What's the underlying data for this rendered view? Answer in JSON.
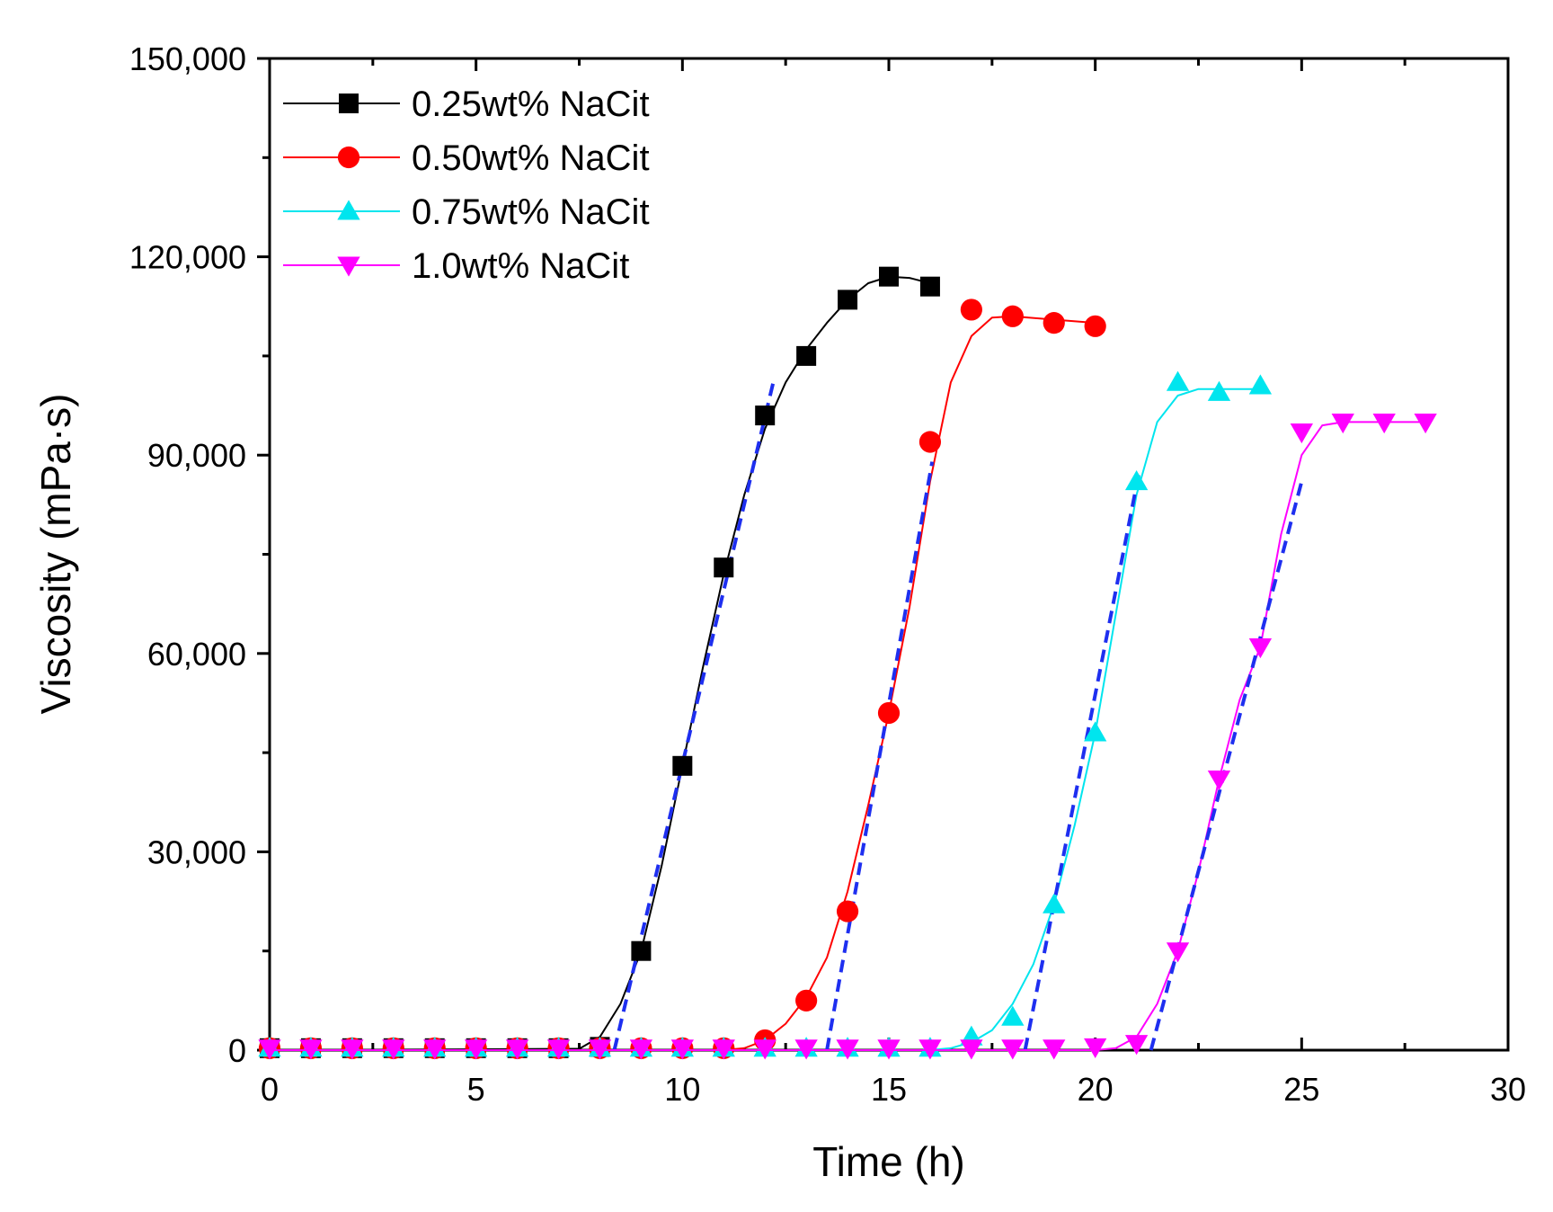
{
  "chart_data": {
    "type": "scatter",
    "title": "",
    "xlabel": "Time (h)",
    "ylabel": "Viscosity (mPa·s)",
    "xlim": [
      0,
      30
    ],
    "ylim": [
      0,
      150000
    ],
    "xticks": [
      0,
      5,
      10,
      15,
      20,
      25,
      30
    ],
    "xtick_labels": [
      "0",
      "5",
      "10",
      "15",
      "20",
      "25",
      "30"
    ],
    "yticks": [
      0,
      30000,
      60000,
      90000,
      120000,
      150000
    ],
    "ytick_labels": [
      "0",
      "30,000",
      "60,000",
      "90,000",
      "120,000",
      "150,000"
    ],
    "grid": false,
    "legend_position": "top-left",
    "series": [
      {
        "name": "0.25wt% NaCit",
        "color": "#000000",
        "marker": "square",
        "x": [
          0,
          1,
          2,
          3,
          4,
          5,
          6,
          7,
          8,
          9,
          10,
          11,
          12,
          13,
          14,
          15,
          16
        ],
        "y": [
          300,
          300,
          300,
          300,
          300,
          300,
          300,
          300,
          500,
          15000,
          43000,
          73000,
          96000,
          105000,
          113500,
          117000,
          115500
        ],
        "fit_x": [
          0,
          7.5,
          8,
          8.5,
          9,
          9.5,
          10,
          10.5,
          11,
          11.5,
          12,
          12.5,
          13,
          13.5,
          14,
          14.5,
          15,
          15.5,
          16
        ],
        "fit_y": [
          0,
          200,
          2000,
          7000,
          15000,
          28000,
          43000,
          58000,
          72000,
          84000,
          94000,
          101000,
          106000,
          110000,
          113500,
          116000,
          117000,
          116800,
          116000
        ],
        "tangent": [
          [
            8.35,
            0
          ],
          [
            12.2,
            101000
          ]
        ]
      },
      {
        "name": "0.50wt% NaCit",
        "color": "#ff0000",
        "marker": "circle",
        "x": [
          0,
          1,
          2,
          3,
          4,
          5,
          6,
          7,
          8,
          9,
          10,
          11,
          12,
          13,
          14,
          15,
          16,
          17,
          18,
          19,
          20
        ],
        "y": [
          300,
          300,
          300,
          300,
          300,
          300,
          300,
          300,
          300,
          300,
          300,
          300,
          1500,
          7500,
          21000,
          51000,
          92000,
          112000,
          111000,
          110000,
          109500
        ],
        "fit_x": [
          0,
          11,
          11.5,
          12,
          12.5,
          13,
          13.5,
          14,
          14.5,
          15,
          15.5,
          16,
          16.5,
          17,
          17.5,
          18,
          19,
          20
        ],
        "fit_y": [
          0,
          0,
          300,
          1500,
          4000,
          8000,
          14000,
          24000,
          37000,
          51000,
          67000,
          86000,
          101000,
          108000,
          110800,
          111000,
          110500,
          110000
        ],
        "tangent": [
          [
            13.5,
            0
          ],
          [
            16.05,
            89000
          ]
        ]
      },
      {
        "name": "0.75wt% NaCit",
        "color": "#00e5ee",
        "marker": "triangle-up",
        "x": [
          0,
          1,
          2,
          3,
          4,
          5,
          6,
          7,
          8,
          9,
          10,
          11,
          12,
          13,
          14,
          15,
          16,
          17,
          18,
          19,
          20,
          21,
          22,
          23,
          24
        ],
        "y": [
          300,
          300,
          300,
          300,
          300,
          300,
          300,
          300,
          300,
          300,
          300,
          300,
          300,
          300,
          300,
          300,
          300,
          2000,
          5000,
          22000,
          48000,
          86000,
          101000,
          99500,
          100500
        ],
        "fit_x": [
          0,
          16,
          16.5,
          17,
          17.5,
          18,
          18.5,
          19,
          19.5,
          20,
          20.5,
          21,
          21.5,
          22,
          22.5,
          23,
          24
        ],
        "fit_y": [
          0,
          0,
          300,
          1200,
          3000,
          7000,
          13000,
          22000,
          34000,
          48000,
          66000,
          84000,
          95000,
          99000,
          100000,
          100000,
          100000
        ],
        "tangent": [
          [
            18.3,
            0
          ],
          [
            21.05,
            87000
          ]
        ]
      },
      {
        "name": "1.0wt% NaCit",
        "color": "#ff00ff",
        "marker": "triangle-down",
        "x": [
          0,
          1,
          2,
          3,
          4,
          5,
          6,
          7,
          8,
          9,
          10,
          11,
          12,
          13,
          14,
          15,
          16,
          17,
          18,
          19,
          20,
          21,
          22,
          23,
          24,
          25,
          26,
          27,
          28
        ],
        "y": [
          300,
          300,
          300,
          300,
          300,
          300,
          300,
          300,
          300,
          300,
          300,
          300,
          300,
          300,
          300,
          300,
          300,
          300,
          300,
          300,
          500,
          1000,
          15000,
          41000,
          61000,
          93500,
          95000,
          95000,
          95000
        ],
        "fit_x": [
          0,
          20,
          20.5,
          21,
          21.5,
          22,
          22.5,
          23,
          23.5,
          24,
          24.5,
          25,
          25.5,
          26,
          27,
          28
        ],
        "fit_y": [
          0,
          0,
          300,
          2000,
          7000,
          15000,
          27000,
          41000,
          53000,
          61000,
          78000,
          90000,
          94500,
          95000,
          95000,
          95000
        ],
        "tangent": [
          [
            21.35,
            0
          ],
          [
            25.0,
            86000
          ]
        ]
      }
    ]
  }
}
